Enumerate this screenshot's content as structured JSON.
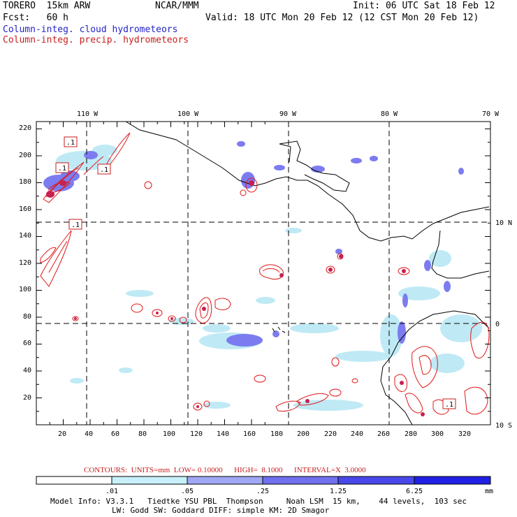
{
  "header": {
    "model": "TORERO  15km ARW",
    "org": "NCAR/MMM",
    "init": "Init: 06 UTC Sat 18 Feb 12",
    "fcst": "Fcst:   60 h",
    "valid": "Valid: 18 UTC Mon 20 Feb 12 (12 CST Mon 20 Feb 12)",
    "legend_cloud": "Column-integ. cloud hydrometeors",
    "legend_precip": "Column-integ. precip. hydrometeors"
  },
  "map": {
    "lon_labels": [
      "110 W",
      "100 W",
      "90 W",
      "80 W",
      "70 W"
    ],
    "lat_labels": [
      "10 N",
      "0",
      "10 S"
    ],
    "x_ticks": [
      "20",
      "40",
      "60",
      "80",
      "100",
      "120",
      "140",
      "160",
      "180",
      "200",
      "220",
      "240",
      "260",
      "280",
      "300",
      "320"
    ],
    "y_ticks": [
      "220",
      "200",
      "180",
      "160",
      "140",
      "120",
      "100",
      "80",
      "60",
      "40",
      "20"
    ],
    "box_labels": [
      ".1",
      ".1",
      ".1",
      ".1",
      ".1"
    ],
    "colors": {
      "cloud": "#5a5af0",
      "cloud_light": "#bfeaf5",
      "precip": "#e01818",
      "coast": "#000000"
    }
  },
  "contour_info": "CONTOURS:  UNITS=mm  LOW= 0.10000      HIGH=  8.1000      INTERVAL=X  3.0000",
  "colorbar": {
    "labels": [
      ".01",
      ".05",
      ".25",
      "1.25",
      "6.25",
      "mm"
    ],
    "colors": [
      "#ffffff",
      "#c8f0fa",
      "#a0a8f5",
      "#7070ee",
      "#4848ea",
      "#2020e4"
    ]
  },
  "model_info": {
    "line1": "Model Info: V3.3.1   Tiedtke YSU PBL  Thompson     Noah LSM  15 km,    44 levels,  103 sec",
    "line2": "LW: Godd SW: Goddard DIFF: simple KM: 2D Smagor"
  }
}
